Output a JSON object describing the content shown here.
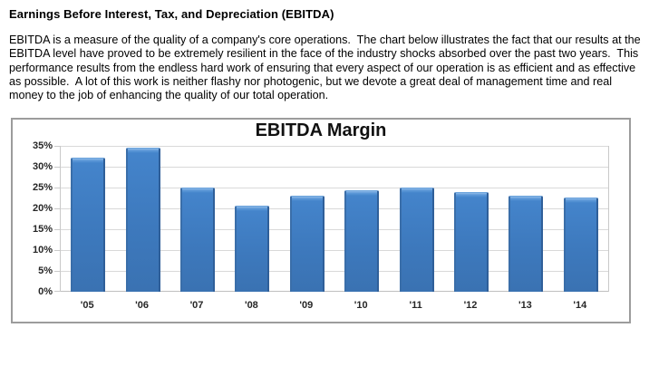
{
  "document": {
    "heading": "Earnings Before Interest, Tax, and Depreciation (EBITDA)",
    "paragraph": "EBITDA is a measure of the quality of a company's core operations.  The chart below illustrates the fact that our results at the EBITDA level have proved to be extremely resilient in the face of the industry shocks absorbed over the past two years.  This performance results from the endless hard work of ensuring that every aspect of our operation is as efficient and as effective as possible.  A lot of this work is neither flashy nor photogenic, but we devote a great deal of management time and real money to the job of enhancing the quality of our total operation."
  },
  "chart_data": {
    "type": "bar",
    "title": "EBITDA Margin",
    "categories": [
      "'05",
      "'06",
      "'07",
      "'08",
      "'09",
      "'10",
      "'11",
      "'12",
      "'13",
      "'14"
    ],
    "values": [
      32.1,
      34.5,
      24.9,
      20.6,
      23.0,
      24.3,
      24.9,
      24.0,
      23.0,
      22.5
    ],
    "xlabel": "",
    "ylabel": "",
    "ylim": [
      0,
      35
    ],
    "ytick_step": 5,
    "ytick_suffix": "%",
    "grid": true,
    "legend_position": "none",
    "colors": {
      "bar_fill": "#3d79bd",
      "bar_highlight": "#8fbbe8",
      "bar_edge_light": "#6ba3dc",
      "bar_edge_dark": "#2f5f99",
      "gridline": "#d9d9d9",
      "axis_line": "#bfbfbf",
      "chart_border": "#9c9c9c",
      "label_text": "#262626"
    }
  }
}
